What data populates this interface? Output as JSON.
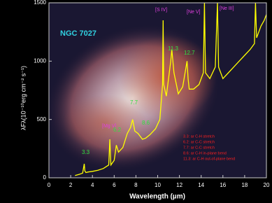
{
  "chart_data": {
    "type": "line",
    "title": "NGC 7027",
    "x_label": "Wavelength (µm)",
    "y_label": "λFλ(10⁻¹⁰erg cm⁻² s⁻¹)",
    "x": [
      2.4,
      2.8,
      3.1,
      3.25,
      3.3,
      3.4,
      3.6,
      4.0,
      4.5,
      5.0,
      5.5,
      5.6,
      5.7,
      6.0,
      6.2,
      6.4,
      6.8,
      7.2,
      7.5,
      7.7,
      7.9,
      8.2,
      8.6,
      8.9,
      9.3,
      9.8,
      10.2,
      10.45,
      10.5,
      10.55,
      10.8,
      11.2,
      11.3,
      11.5,
      11.9,
      12.3,
      12.7,
      12.8,
      12.9,
      13.3,
      13.8,
      14.2,
      14.3,
      14.4,
      14.8,
      15.3,
      15.5,
      15.6,
      16.0,
      16.5,
      17.0,
      17.5,
      18.0,
      18.5,
      18.9,
      19.0,
      19.1,
      19.5,
      19.8,
      20.0
    ],
    "series": [
      {
        "color": "#ffff00",
        "values": [
          20,
          30,
          40,
          120,
          60,
          45,
          50,
          55,
          65,
          80,
          110,
          330,
          110,
          150,
          280,
          220,
          260,
          380,
          430,
          500,
          400,
          380,
          330,
          340,
          370,
          420,
          500,
          800,
          1350,
          800,
          700,
          1000,
          1100,
          900,
          720,
          780,
          1000,
          850,
          760,
          760,
          800,
          900,
          1500,
          900,
          850,
          950,
          1500,
          950,
          850,
          900,
          950,
          1000,
          1050,
          1100,
          1150,
          1500,
          1200,
          1300,
          1350,
          1400
        ]
      }
    ],
    "xlim": [
      0,
      20
    ],
    "ylim": [
      0,
      1500
    ],
    "xticks": [
      0,
      2,
      4,
      6,
      8,
      10,
      12,
      14,
      16,
      18,
      20
    ],
    "yticks": [
      0,
      500,
      1000,
      1500
    ],
    "line_labels": [
      "[S IV]",
      "[Ne V]",
      "[Ne III]",
      "[Mg V]"
    ],
    "band_labels": [
      "3.3",
      "6.2",
      "7.7",
      "8.6",
      "11.3",
      "12.7"
    ],
    "notes": [
      "3.3: ar C-H stretch",
      "6.2: ar C-C stretch",
      "7.7: ar C-C stretch",
      "8.6: ar C-H in-plane bend",
      "11.3: ar C-H out-of-plane bend"
    ]
  }
}
